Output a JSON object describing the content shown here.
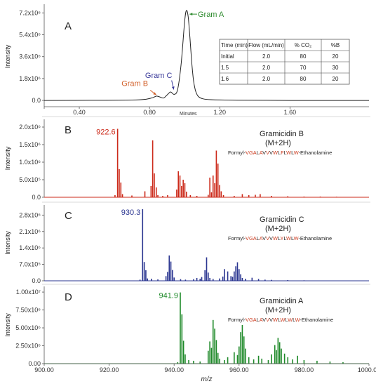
{
  "chart_data": [
    {
      "type": "line",
      "panel": "A",
      "xlabel": "Minutes",
      "ylabel": "Intensity",
      "xlim": [
        0.2,
        2.05
      ],
      "ylim": [
        -400000,
        7800000
      ],
      "xticks": [
        {
          "v": 0.4,
          "t": "0.40"
        },
        {
          "v": 0.8,
          "t": "0.80"
        },
        {
          "v": 1.2,
          "t": "1.20"
        },
        {
          "v": 1.6,
          "t": "1.60"
        }
      ],
      "yticks": [
        {
          "v": 0,
          "t": "0.0"
        },
        {
          "v": 1800000,
          "t": "1.8x10⁶"
        },
        {
          "v": 3600000,
          "t": "3.6x10⁶"
        },
        {
          "v": 5400000,
          "t": "5.4x10⁶"
        },
        {
          "v": 7200000,
          "t": "7.2x10⁶"
        }
      ],
      "color": "#222222",
      "x": [
        0.2,
        0.5,
        0.7,
        0.78,
        0.82,
        0.84,
        0.86,
        0.88,
        0.9,
        0.92,
        0.94,
        0.96,
        0.98,
        1.0,
        1.01,
        1.02,
        1.03,
        1.04,
        1.05,
        1.06,
        1.07,
        1.08,
        1.1,
        1.15,
        1.3,
        1.6,
        2.05
      ],
      "y": [
        0,
        10000,
        30000,
        100000,
        240000,
        360000,
        280000,
        200000,
        450000,
        700000,
        500000,
        900000,
        3000000,
        6500000,
        7400000,
        6900000,
        5200000,
        3200000,
        1700000,
        900000,
        500000,
        300000,
        150000,
        60000,
        20000,
        0,
        0
      ],
      "annotations": [
        {
          "text": "Gram A",
          "x": 1.015,
          "y": 7100000,
          "color": "#2e8b2e"
        },
        {
          "text": "Gram C",
          "x": 0.93,
          "y": 700000,
          "color": "#3a3a9a"
        },
        {
          "text": "Gram B",
          "x": 0.85,
          "y": 360000,
          "color": "#d2602a"
        }
      ],
      "table": {
        "headers": [
          "Time (min)",
          "Flow (mL/min)",
          "% CO₂",
          "%B"
        ],
        "rows": [
          [
            "Initial",
            "2.0",
            "80",
            "20"
          ],
          [
            "1.5",
            "2.0",
            "70",
            "30"
          ],
          [
            "1.6",
            "2.0",
            "80",
            "20"
          ]
        ]
      }
    },
    {
      "type": "bar",
      "panel": "B",
      "title": "Gramicidin B",
      "subtitle": "(M+2H)",
      "sequence": [
        {
          "t": "Formyl-",
          "c": "#222222"
        },
        {
          "t": "VGA",
          "c": "#cc3b1f"
        },
        {
          "t": "L",
          "c": "#222222"
        },
        {
          "t": "A",
          "c": "#cc3b1f"
        },
        {
          "t": "V",
          "c": "#222222"
        },
        {
          "t": "V",
          "c": "#cc3b1f"
        },
        {
          "t": "V",
          "c": "#222222"
        },
        {
          "t": "W",
          "c": "#cc3b1f"
        },
        {
          "t": "L",
          "c": "#222222"
        },
        {
          "t": "F",
          "c": "#cc3b1f"
        },
        {
          "t": "L",
          "c": "#222222"
        },
        {
          "t": "W",
          "c": "#cc3b1f"
        },
        {
          "t": "L",
          "c": "#222222"
        },
        {
          "t": "W",
          "c": "#cc3b1f"
        },
        {
          "t": "-Ethanolamine",
          "c": "#222222"
        }
      ],
      "ylabel": "Intensity",
      "xlim": [
        900,
        1000
      ],
      "ylim": [
        0,
        2100000
      ],
      "yticks": [
        {
          "v": 0,
          "t": "0.0"
        },
        {
          "v": 500000,
          "t": "5.0x10⁵"
        },
        {
          "v": 1000000,
          "t": "1.0x10⁶"
        },
        {
          "v": 1500000,
          "t": "1.5x10⁶"
        },
        {
          "v": 2000000,
          "t": "2.0x10⁶"
        }
      ],
      "color": "#cc2a1a",
      "peak_label": {
        "text": "922.6",
        "x": 922.6
      },
      "x": [
        921.8,
        922.6,
        923.1,
        923.6,
        924.1,
        927.0,
        931.0,
        932.9,
        933.4,
        933.9,
        934.5,
        935.0,
        936.5,
        938.0,
        940.8,
        941.3,
        941.8,
        942.3,
        942.8,
        943.3,
        943.8,
        945.0,
        947.0,
        950.5,
        951.0,
        951.5,
        952.0,
        952.5,
        953.0,
        953.5,
        954.0,
        954.5,
        955.2,
        958.5,
        961.0,
        963.0,
        965.0,
        966.5,
        970.0,
        975.0,
        980.0,
        985.0,
        990.0,
        995.0
      ],
      "y": [
        60000,
        1950000,
        800000,
        420000,
        90000,
        50000,
        170000,
        320000,
        1620000,
        680000,
        280000,
        60000,
        40000,
        60000,
        220000,
        740000,
        620000,
        320000,
        500000,
        400000,
        160000,
        60000,
        40000,
        70000,
        560000,
        140000,
        620000,
        400000,
        1330000,
        960000,
        350000,
        170000,
        60000,
        40000,
        90000,
        60000,
        70000,
        90000,
        40000,
        30000,
        20000,
        20000,
        15000,
        10000
      ]
    },
    {
      "type": "bar",
      "panel": "C",
      "title": "Gramicidin C",
      "subtitle": "(M+2H)",
      "sequence": [
        {
          "t": "Formyl-",
          "c": "#222222"
        },
        {
          "t": "VGA",
          "c": "#cc3b1f"
        },
        {
          "t": "L",
          "c": "#222222"
        },
        {
          "t": "A",
          "c": "#cc3b1f"
        },
        {
          "t": "V",
          "c": "#222222"
        },
        {
          "t": "V",
          "c": "#cc3b1f"
        },
        {
          "t": "V",
          "c": "#222222"
        },
        {
          "t": "W",
          "c": "#cc3b1f"
        },
        {
          "t": "L",
          "c": "#222222"
        },
        {
          "t": "Y",
          "c": "#cc3b1f"
        },
        {
          "t": "L",
          "c": "#222222"
        },
        {
          "t": "W",
          "c": "#cc3b1f"
        },
        {
          "t": "L",
          "c": "#222222"
        },
        {
          "t": "W",
          "c": "#cc3b1f"
        },
        {
          "t": "-Ethanolamine",
          "c": "#222222"
        }
      ],
      "ylabel": "Intensity",
      "xlim": [
        900,
        1000
      ],
      "ylim": [
        0,
        3050000
      ],
      "yticks": [
        {
          "v": 0,
          "t": "0.0"
        },
        {
          "v": 700000,
          "t": "7.0x10⁵"
        },
        {
          "v": 1400000,
          "t": "1.4x10⁶"
        },
        {
          "v": 2100000,
          "t": "2.1x10⁶"
        },
        {
          "v": 2800000,
          "t": "2.8x10⁶"
        }
      ],
      "color": "#2a3590",
      "peak_label": {
        "text": "930.3",
        "x": 930.3
      },
      "x": [
        929.5,
        930.3,
        930.8,
        931.3,
        931.8,
        933.0,
        935.0,
        937.5,
        938.0,
        938.5,
        939.0,
        939.5,
        940.0,
        942.0,
        943.5,
        946.0,
        947.0,
        948.0,
        948.5,
        949.5,
        950.0,
        950.5,
        951.0,
        952.0,
        954.0,
        955.0,
        955.5,
        956.5,
        957.5,
        958.0,
        958.5,
        959.0,
        959.5,
        960.0,
        960.5,
        961.0,
        962.0,
        964.0,
        966.0,
        968.0,
        970.0,
        975.0,
        980.0,
        985.0
      ],
      "y": [
        50000,
        3050000,
        800000,
        450000,
        100000,
        90000,
        60000,
        200000,
        380000,
        1080000,
        820000,
        460000,
        140000,
        70000,
        50000,
        70000,
        120000,
        90000,
        160000,
        450000,
        1000000,
        350000,
        120000,
        80000,
        100000,
        180000,
        500000,
        400000,
        200000,
        170000,
        400000,
        620000,
        790000,
        500000,
        280000,
        120000,
        90000,
        130000,
        80000,
        50000,
        40000,
        30000,
        20000,
        15000
      ]
    },
    {
      "type": "bar",
      "panel": "D",
      "title": "Gramicidin A",
      "subtitle": "(M+2H)",
      "sequence": [
        {
          "t": "Formyl-",
          "c": "#222222"
        },
        {
          "t": "VGA",
          "c": "#cc3b1f"
        },
        {
          "t": "L",
          "c": "#222222"
        },
        {
          "t": "A",
          "c": "#cc3b1f"
        },
        {
          "t": "V",
          "c": "#222222"
        },
        {
          "t": "V",
          "c": "#cc3b1f"
        },
        {
          "t": "V",
          "c": "#222222"
        },
        {
          "t": "W",
          "c": "#cc3b1f"
        },
        {
          "t": "L",
          "c": "#222222"
        },
        {
          "t": "W",
          "c": "#cc3b1f"
        },
        {
          "t": "L",
          "c": "#222222"
        },
        {
          "t": "W",
          "c": "#cc3b1f"
        },
        {
          "t": "L",
          "c": "#222222"
        },
        {
          "t": "W",
          "c": "#cc3b1f"
        },
        {
          "t": "-Ethanolamine",
          "c": "#222222"
        }
      ],
      "xlabel": "m/z",
      "ylabel": "Intensity",
      "xlim": [
        900,
        1000
      ],
      "ylim": [
        0,
        10300000
      ],
      "xticks": [
        {
          "v": 900,
          "t": "900.00"
        },
        {
          "v": 920,
          "t": "920.00"
        },
        {
          "v": 940,
          "t": "940.00"
        },
        {
          "v": 960,
          "t": "960.00"
        },
        {
          "v": 980,
          "t": "980.00"
        },
        {
          "v": 1000,
          "t": "1000.00"
        }
      ],
      "yticks": [
        {
          "v": 0,
          "t": "0.00"
        },
        {
          "v": 2500000,
          "t": "2.50x10⁶"
        },
        {
          "v": 5000000,
          "t": "5.00x10⁶"
        },
        {
          "v": 7500000,
          "t": "7.50x10⁶"
        },
        {
          "v": 10000000,
          "t": "1.00x10⁷"
        }
      ],
      "color": "#1f8a2a",
      "peak_label": {
        "text": "941.9",
        "x": 941.9
      },
      "x": [
        941.1,
        941.9,
        942.4,
        942.9,
        943.4,
        944.5,
        946.0,
        948.0,
        950.5,
        951.0,
        951.5,
        952.0,
        952.5,
        953.0,
        953.5,
        954.0,
        955.5,
        956.5,
        958.5,
        959.5,
        960.0,
        960.5,
        961.0,
        961.5,
        962.0,
        963.0,
        964.5,
        966.0,
        967.0,
        969.0,
        970.0,
        971.0,
        971.5,
        972.0,
        972.5,
        973.0,
        974.0,
        975.0,
        976.5,
        978.0,
        980.0,
        984.0,
        988.0,
        992.0
      ],
      "y": [
        200000,
        9950000,
        6900000,
        3200000,
        1300000,
        500000,
        400000,
        300000,
        1800000,
        3100000,
        2200000,
        6100000,
        4900000,
        3300000,
        1500000,
        700000,
        500000,
        900000,
        1600000,
        1200000,
        2400000,
        4400000,
        5400000,
        3800000,
        2100000,
        900000,
        600000,
        1100000,
        700000,
        500000,
        1300000,
        2600000,
        1900000,
        3600000,
        3000000,
        2100000,
        1400000,
        900000,
        600000,
        1100000,
        500000,
        400000,
        300000,
        200000
      ]
    }
  ]
}
